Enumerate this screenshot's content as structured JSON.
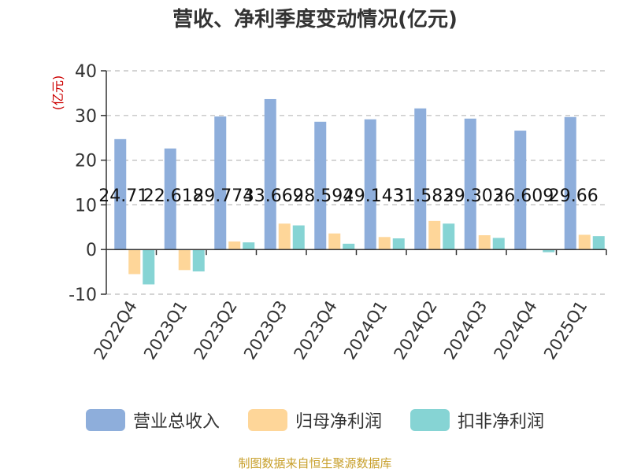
{
  "title": "营收、净利季度变动情况(亿元)",
  "source": "制图数据来自恒生聚源数据库",
  "colors": {
    "grid": "#bbbbbb",
    "axis": "#333333",
    "unit": "#cc0000"
  },
  "chart_data": {
    "type": "bar",
    "title": "营收、净利季度变动情况(亿元)",
    "ylabel": "(亿元)",
    "ylim": [
      -10,
      40
    ],
    "yticks": [
      -10,
      0,
      10,
      20,
      30,
      40
    ],
    "grid": true,
    "legend_position": "bottom",
    "categories": [
      "2022Q4",
      "2023Q1",
      "2023Q2",
      "2023Q3",
      "2023Q4",
      "2024Q1",
      "2024Q2",
      "2024Q3",
      "2024Q4",
      "2025Q1"
    ],
    "series": [
      {
        "name": "营业总收入",
        "color": "#8eaedb",
        "values": [
          24.71,
          22.618,
          29.774,
          33.669,
          28.594,
          29.143,
          31.583,
          29.303,
          26.609,
          29.66
        ],
        "labels": [
          "24.71",
          "22.618",
          "29.774",
          "33.669",
          "28.594",
          "29.143",
          "31.583",
          "29.303",
          "26.609",
          "29.66"
        ]
      },
      {
        "name": "归母净利润",
        "color": "#fed699",
        "values": [
          -5.5,
          -4.6,
          1.8,
          5.8,
          3.6,
          2.8,
          6.4,
          3.2,
          0.1,
          3.3
        ]
      },
      {
        "name": "扣非净利润",
        "color": "#86d4d4",
        "values": [
          -7.8,
          -4.9,
          1.6,
          5.4,
          1.3,
          2.5,
          5.8,
          2.6,
          -0.6,
          3.0
        ]
      }
    ]
  }
}
